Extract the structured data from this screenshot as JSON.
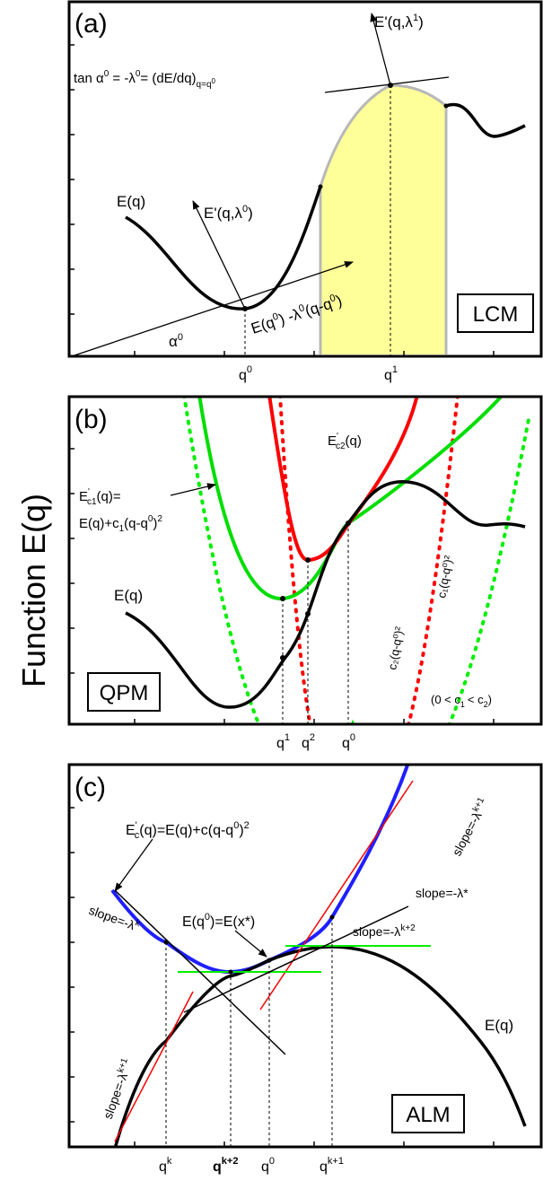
{
  "y_axis_label": "Function E(q)",
  "colors": {
    "black": "#000000",
    "red": "#ff0000",
    "green": "#00ee00",
    "blue": "#1f1fff",
    "yellow": "#ffff99",
    "gray": "#b8b8b8"
  },
  "panel_a": {
    "tag": "(a)",
    "method": "LCM",
    "formula_main": "tan α",
    "formula_sup1": "0",
    "formula_mid": " = -λ",
    "formula_sup2": "0",
    "formula_rest": "= (dE/dq)",
    "formula_sub": "q=q",
    "formula_subsup": "0",
    "curve_label": "E(q)",
    "eprime0_main": "E'(q,λ",
    "eprime0_sup": "0",
    "eprime0_close": ")",
    "eprime1_main": "E'(q,λ",
    "eprime1_sup": "1",
    "eprime1_close": ")",
    "tangent_label_a": "E(q",
    "tangent_label_sup1": "0",
    "tangent_label_b": ") -λ",
    "tangent_label_sup2": "0",
    "tangent_label_c": "(q-q",
    "tangent_label_sup3": "0",
    "tangent_label_d": ")",
    "alpha_main": "α",
    "alpha_sup": "0",
    "x_label_q0": "q",
    "x_label_q0_sup": "0",
    "x_label_q1": "q",
    "x_label_q1_sup": "1"
  },
  "panel_b": {
    "tag": "(b)",
    "method": "QPM",
    "curve_label": "E(q)",
    "ec1_main": "E",
    "ec1_sup": "'",
    "ec1_sub": "c1",
    "ec1_rest": "(q)=",
    "ec1_line2": "E(q)+c",
    "ec1_line2_sub": "1",
    "ec1_line2_rest": "(q-q",
    "ec1_line2_sup": "0",
    "ec1_line2_end": ")",
    "ec1_line2_sup2": "2",
    "ec2_main": "E",
    "ec2_sup": "'",
    "ec2_sub": "c2",
    "ec2_rest": "(q)",
    "c2_label": "c₂(q-q⁰)²",
    "c1_label": "c₁(q-q⁰)²",
    "constraint_a": "(0 < c",
    "constraint_sub1": "1",
    "constraint_b": "< c",
    "constraint_sub2": "2",
    "constraint_c": ")",
    "x_q1": "q",
    "x_q1_sup": "1",
    "x_q2": "q",
    "x_q2_sup": "2",
    "x_q0": "q",
    "x_q0_sup": "0"
  },
  "panel_c": {
    "tag": "(c)",
    "method": "ALM",
    "curve_label": "E(q)",
    "ec_main": "E",
    "ec_sup": "'",
    "ec_sub": "c",
    "ec_rest": "(q)=E(q)+c(q-q",
    "ec_sup2": "0",
    "ec_end": ")",
    "ec_sup3": "2",
    "eq0_a": "E(q",
    "eq0_sup": "0",
    "eq0_b": ")=E(x*)",
    "slope_k": "slope=-λ",
    "slope_k_sup": "k",
    "slope_star": "slope=-λ*",
    "slope_k2": "slope=-λ",
    "slope_k2_sup": "k+2",
    "slope_k1_top": "slope=-λ",
    "slope_k1_top_sup": "k+1",
    "slope_k1_bottom": "slope=-λ",
    "slope_k1_bottom_sup": "k+1",
    "x_qk": "q",
    "x_qk_sup": "k",
    "x_qk2": "q",
    "x_qk2_sup": "k+2",
    "x_q0": "q",
    "x_q0_sup": "0",
    "x_qk1": "q",
    "x_qk1_sup": "k+1"
  }
}
